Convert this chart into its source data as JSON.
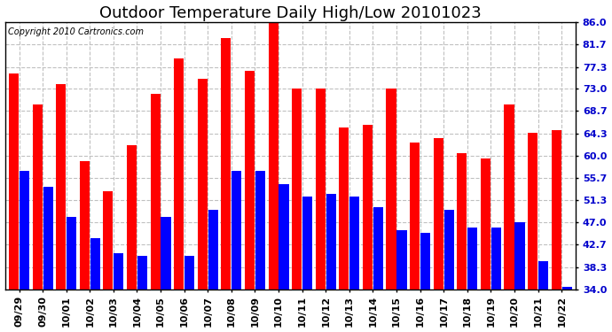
{
  "title": "Outdoor Temperature Daily High/Low 20101023",
  "copyright_text": "Copyright 2010 Cartronics.com",
  "dates": [
    "09/29",
    "09/30",
    "10/01",
    "10/02",
    "10/03",
    "10/04",
    "10/05",
    "10/06",
    "10/07",
    "10/08",
    "10/09",
    "10/10",
    "10/11",
    "10/12",
    "10/13",
    "10/14",
    "10/15",
    "10/16",
    "10/17",
    "10/18",
    "10/19",
    "10/20",
    "10/21",
    "10/22"
  ],
  "highs": [
    76.0,
    70.0,
    74.0,
    59.0,
    53.0,
    62.0,
    72.0,
    79.0,
    75.0,
    83.0,
    76.5,
    87.0,
    73.0,
    73.0,
    65.5,
    66.0,
    73.0,
    62.5,
    63.5,
    60.5,
    59.5,
    70.0,
    64.5,
    65.0
  ],
  "lows": [
    57.0,
    54.0,
    48.0,
    44.0,
    41.0,
    40.5,
    48.0,
    40.5,
    49.5,
    57.0,
    57.0,
    54.5,
    52.0,
    52.5,
    52.0,
    50.0,
    45.5,
    45.0,
    49.5,
    46.0,
    46.0,
    47.0,
    39.5,
    34.5
  ],
  "high_color": "#ff0000",
  "low_color": "#0000ff",
  "bg_color": "#ffffff",
  "grid_color": "#c0c0c0",
  "yticks": [
    34.0,
    38.3,
    42.7,
    47.0,
    51.3,
    55.7,
    60.0,
    64.3,
    68.7,
    73.0,
    77.3,
    81.7,
    86.0
  ],
  "ymin": 34.0,
  "ymax": 86.0,
  "title_fontsize": 13,
  "axis_fontsize": 8,
  "copyright_fontsize": 7
}
